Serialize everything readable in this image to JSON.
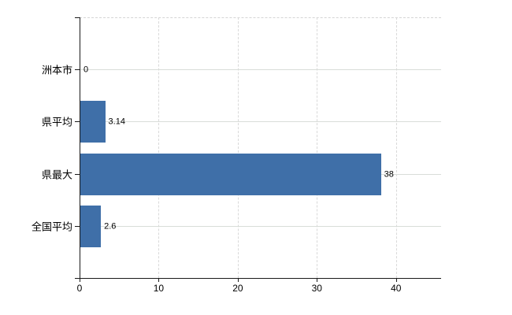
{
  "chart_data": {
    "type": "bar",
    "orientation": "horizontal",
    "title": "",
    "xlabel": "",
    "ylabel": "",
    "categories": [
      "洲本市",
      "県平均",
      "県最大",
      "全国平均"
    ],
    "values": [
      0,
      3.14,
      38,
      2.6
    ],
    "value_labels": [
      "0",
      "3.14",
      "38",
      "2.6"
    ],
    "x_ticks": [
      0,
      10,
      20,
      30,
      40
    ],
    "xlim": [
      0,
      45.7
    ],
    "grid": true,
    "legend": false,
    "colors": {
      "bar": "#3f6fa8",
      "axis": "#1a1a1a",
      "grid": "#d9d9d9",
      "text": "#000000",
      "background": "#ffffff"
    }
  }
}
